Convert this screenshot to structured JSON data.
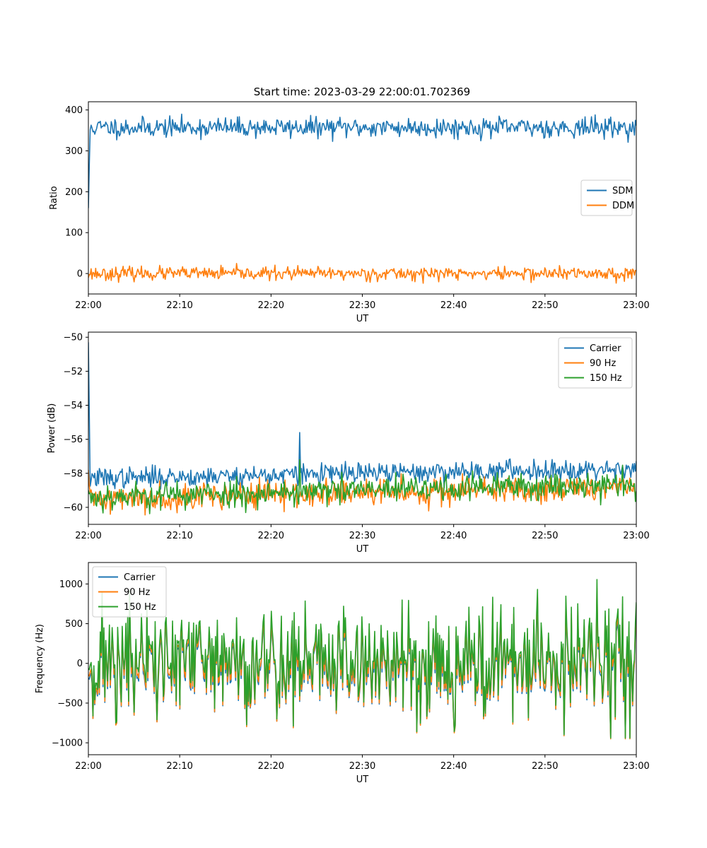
{
  "colors": {
    "blue": "#1f77b4",
    "orange": "#ff7f0e",
    "green": "#2ca02c"
  },
  "chart_data": [
    {
      "type": "line",
      "title": "Start time: 2023-03-29 22:00:01.702369",
      "xlabel": "UT",
      "ylabel": "Ratio",
      "x_ticks": [
        "22:00",
        "22:10",
        "22:20",
        "22:30",
        "22:40",
        "22:50",
        "23:00"
      ],
      "y_ticks": [
        "0",
        "100",
        "200",
        "300",
        "400"
      ],
      "xlim": [
        "22:00",
        "23:00"
      ],
      "ylim": [
        -50,
        420
      ],
      "legend_position": "center-right",
      "series": [
        {
          "name": "SDM",
          "color": "#1f77b4",
          "start_value": 160,
          "mean": 357,
          "noise": 12,
          "points": 600,
          "seed": 11
        },
        {
          "name": "DDM",
          "color": "#ff7f0e",
          "start_value": -10,
          "mean": 0,
          "noise": 8,
          "points": 600,
          "seed": 23
        }
      ]
    },
    {
      "type": "line",
      "title": "",
      "xlabel": "UT",
      "ylabel": "Power (dB)",
      "x_ticks": [
        "22:00",
        "22:10",
        "22:20",
        "22:30",
        "22:40",
        "22:50",
        "23:00"
      ],
      "y_ticks": [
        "−60",
        "−58",
        "−56",
        "−54",
        "−52",
        "−50"
      ],
      "xlim": [
        "22:00",
        "23:00"
      ],
      "ylim": [
        -61,
        -49.7
      ],
      "legend_position": "top-right",
      "series": [
        {
          "name": "Carrier",
          "color": "#1f77b4",
          "start_value": -50.3,
          "mean": -58.3,
          "trend": 0.6,
          "noise": 0.3,
          "points": 600,
          "seed": 37,
          "spike_at": 0.385,
          "spike_value": -55.6
        },
        {
          "name": "90 Hz",
          "color": "#ff7f0e",
          "start_value": -57.8,
          "mean": -59.5,
          "trend": 0.7,
          "noise": 0.4,
          "points": 600,
          "seed": 41
        },
        {
          "name": "150 Hz",
          "color": "#2ca02c",
          "start_value": -59.0,
          "mean": -59.4,
          "trend": 0.8,
          "noise": 0.4,
          "points": 600,
          "seed": 53,
          "spike_at": 0.385,
          "spike_value": -57.2
        }
      ]
    },
    {
      "type": "line",
      "title": "",
      "xlabel": "UT",
      "ylabel": "Frequency (Hz)",
      "x_ticks": [
        "22:00",
        "22:10",
        "22:20",
        "22:30",
        "22:40",
        "22:50",
        "23:00"
      ],
      "y_ticks": [
        "−1000",
        "−500",
        "0",
        "500",
        "1000"
      ],
      "xlim": [
        "22:00",
        "23:00"
      ],
      "ylim": [
        -1150,
        1270
      ],
      "legend_position": "top-left",
      "series": [
        {
          "name": "Carrier",
          "color": "#1f77b4",
          "offset": -80,
          "scale": 0.85,
          "points": 600,
          "seed": 71
        },
        {
          "name": "90 Hz",
          "color": "#ff7f0e",
          "offset": -30,
          "scale": 0.92,
          "points": 600,
          "seed": 71
        },
        {
          "name": "150 Hz",
          "color": "#2ca02c",
          "offset": 60,
          "scale": 1.0,
          "points": 600,
          "seed": 71
        }
      ]
    }
  ]
}
